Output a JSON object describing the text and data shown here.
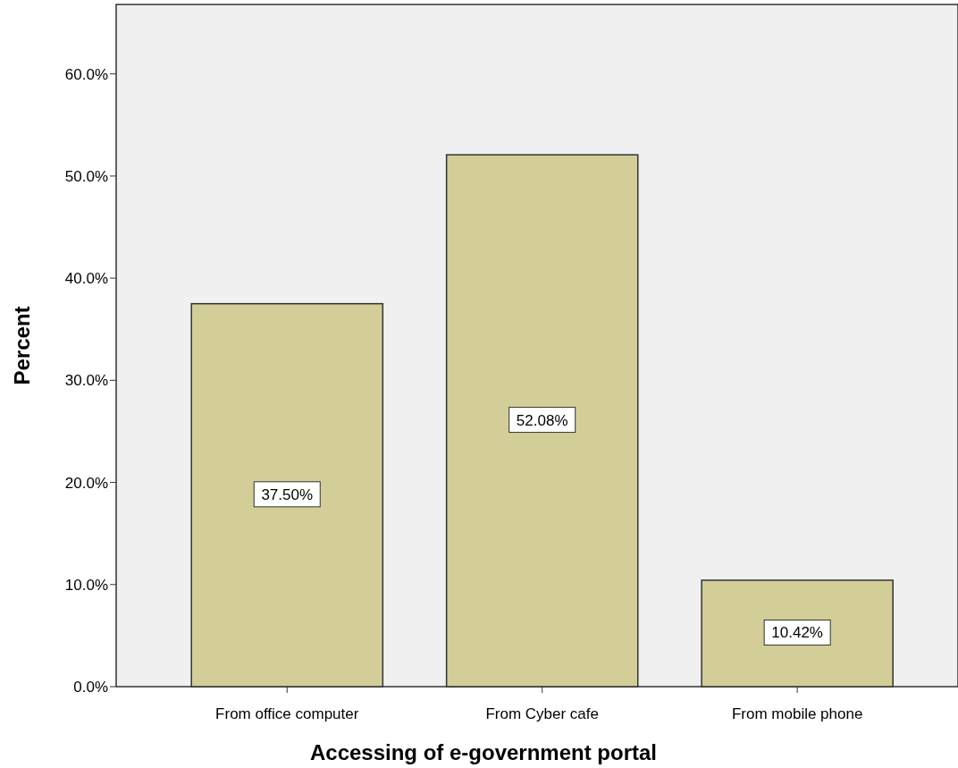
{
  "chart_data": {
    "type": "bar",
    "xlabel": "Accessing of e-government portal",
    "ylabel": "Percent",
    "categories": [
      "From office computer",
      "From Cyber cafe",
      "From mobile phone"
    ],
    "values": [
      37.5,
      52.08,
      10.42
    ],
    "value_labels": [
      "37.50%",
      "52.08%",
      "10.42%"
    ],
    "color": "#d3ce97",
    "ylim": [
      0,
      66.8
    ],
    "yticks": [
      {
        "value": 0,
        "label": "0.0%"
      },
      {
        "value": 10,
        "label": "10.0%"
      },
      {
        "value": 20,
        "label": "20.0%"
      },
      {
        "value": 30,
        "label": "30.0%"
      },
      {
        "value": 40,
        "label": "40.0%"
      },
      {
        "value": 50,
        "label": "50.0%"
      },
      {
        "value": 60,
        "label": "60.0%"
      }
    ]
  }
}
